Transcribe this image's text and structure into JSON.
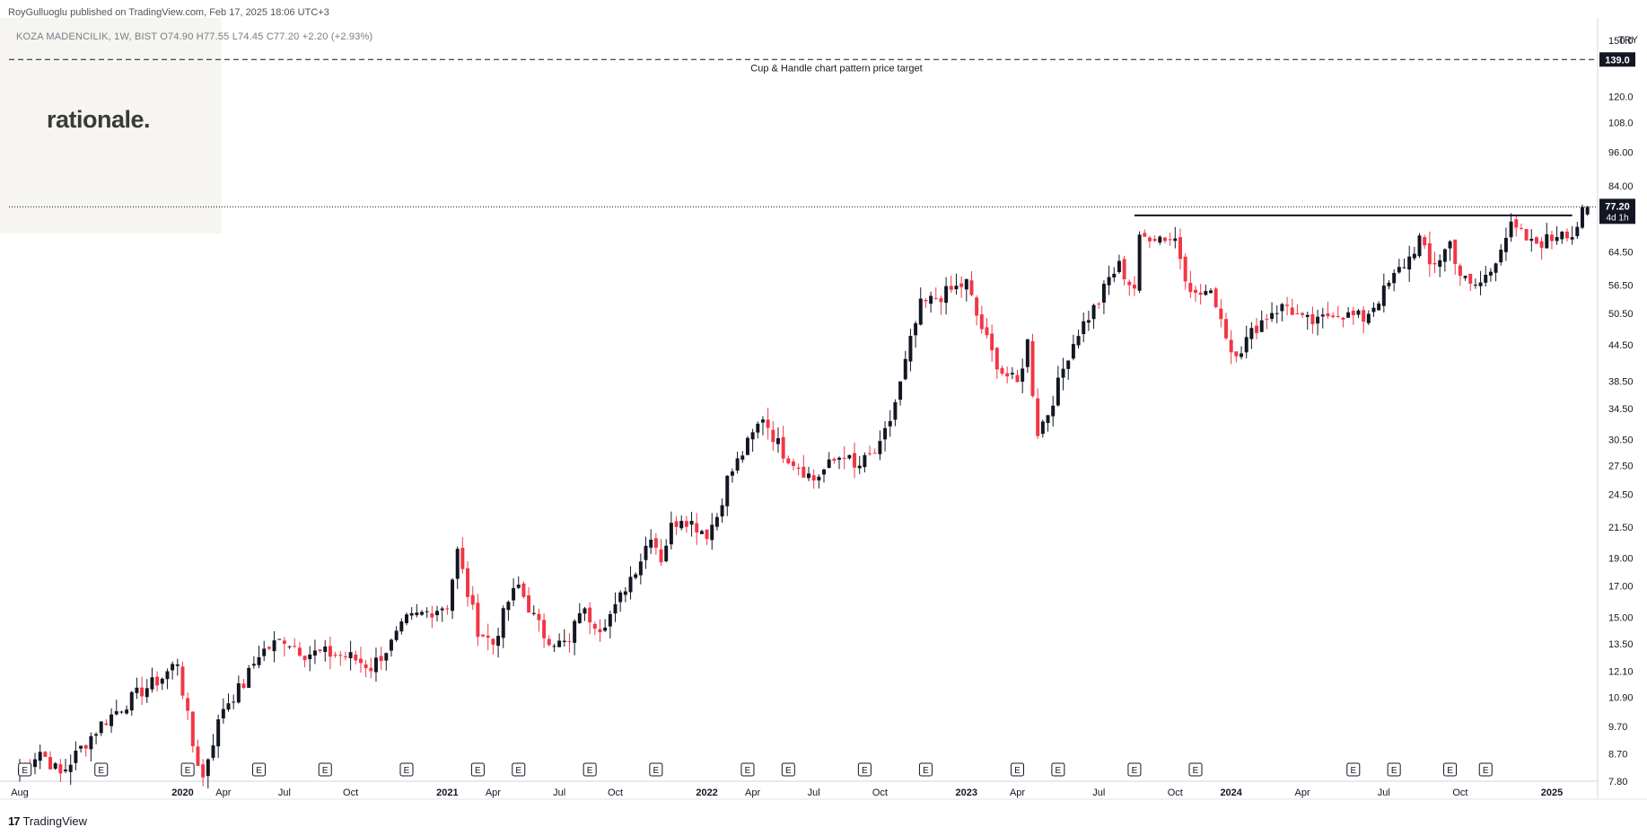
{
  "header": {
    "published": "RoyGulluoglu published on TradingView.com, Feb 17, 2025 18:06 UTC+3",
    "symbol_line": "KOZA MADENCILIK, 1W, BIST  O74.90  H77.55  L74.45  C77.20  +2.20 (+2.93%)"
  },
  "branding": {
    "watermark": "rationale.",
    "footer": "TradingView",
    "footer_mark": "17"
  },
  "colors": {
    "up": "#131722",
    "down": "#f23645",
    "grid": "#f0f3fa",
    "axis_text": "#131722"
  },
  "chart_data": {
    "type": "candlestick",
    "symbol": "KOZA MADENCILIK",
    "interval": "1W",
    "exchange": "BIST",
    "currency": "TRY",
    "ohlc_last": {
      "open": 74.9,
      "high": 77.55,
      "low": 74.45,
      "close": 77.2,
      "change": "+2.20",
      "change_pct": "+2.93%"
    },
    "y_scale": "log",
    "ylim": [
      7.8,
      150
    ],
    "y_ticks": [
      "150.0",
      "139.0",
      "120.0",
      "108.0",
      "96.00",
      "84.00",
      "77.20",
      "64.50",
      "56.50",
      "50.50",
      "44.50",
      "38.50",
      "34.50",
      "30.50",
      "27.50",
      "24.50",
      "21.50",
      "19.00",
      "17.00",
      "15.00",
      "13.50",
      "12.10",
      "10.90",
      "9.70",
      "8.70",
      "7.80"
    ],
    "x_ticks": [
      "Aug",
      "2020",
      "Apr",
      "Jul",
      "Oct",
      "2021",
      "Apr",
      "Jul",
      "Oct",
      "2022",
      "Apr",
      "Jul",
      "Oct",
      "2023",
      "Apr",
      "Jul",
      "Oct",
      "2024",
      "Apr",
      "Jul",
      "Oct",
      "2025"
    ],
    "x_ticks_bold": [
      "2020",
      "2021",
      "2022",
      "2023",
      "2024",
      "2025"
    ],
    "anchors": [
      [
        "Aug",
        0,
        8.2
      ],
      [
        "",
        4,
        8.8
      ],
      [
        "",
        8,
        8.0
      ],
      [
        "",
        12,
        8.9
      ],
      [
        "",
        16,
        9.8
      ],
      [
        "",
        20,
        10.5
      ],
      [
        "",
        24,
        11.2
      ],
      [
        "",
        28,
        11.8
      ],
      [
        "",
        31,
        12.6
      ],
      [
        "2020",
        32,
        11.2
      ],
      [
        "",
        34,
        9.0
      ],
      [
        "",
        36,
        7.9
      ],
      [
        "",
        37,
        8.6
      ],
      [
        "Apr",
        40,
        10.5
      ],
      [
        "",
        44,
        11.5
      ],
      [
        "",
        47,
        13.0
      ],
      [
        "Jul",
        52,
        13.8
      ],
      [
        "",
        56,
        13.0
      ],
      [
        "",
        60,
        13.0
      ],
      [
        "Oct",
        65,
        12.8
      ],
      [
        "",
        69,
        12.3
      ],
      [
        "",
        73,
        13.5
      ],
      [
        "",
        76,
        14.8
      ],
      [
        "",
        79,
        15.2
      ],
      [
        "2021",
        84,
        15.8
      ],
      [
        "",
        86,
        19.5
      ],
      [
        "",
        88,
        16.5
      ],
      [
        "",
        90,
        14.3
      ],
      [
        "Apr",
        93,
        13.5
      ],
      [
        "",
        96,
        16.0
      ],
      [
        "",
        98,
        17.0
      ],
      [
        "",
        101,
        15.0
      ],
      [
        "",
        103,
        14.0
      ],
      [
        "Jul",
        106,
        13.5
      ],
      [
        "",
        108,
        13.5
      ],
      [
        "",
        110,
        15.5
      ],
      [
        "",
        112,
        15.0
      ],
      [
        "",
        114,
        14.5
      ],
      [
        "Oct",
        117,
        15.5
      ],
      [
        "",
        119,
        17.0
      ],
      [
        "",
        122,
        19.0
      ],
      [
        "",
        124,
        21.0
      ],
      [
        "",
        126,
        19.0
      ],
      [
        "",
        128,
        21.5
      ],
      [
        "",
        130,
        22.5
      ],
      [
        "2022",
        135,
        21.0
      ],
      [
        "",
        137,
        22.5
      ],
      [
        "",
        139,
        26.0
      ],
      [
        "Apr",
        144,
        31.0
      ],
      [
        "",
        146,
        33.5
      ],
      [
        "",
        148,
        31.0
      ],
      [
        "",
        150,
        29.0
      ],
      [
        "Jul",
        156,
        26.0
      ],
      [
        "",
        159,
        27.5
      ],
      [
        "",
        162,
        29.0
      ],
      [
        "",
        164,
        27.0
      ],
      [
        "Oct",
        169,
        29.5
      ],
      [
        "",
        171,
        33.0
      ],
      [
        "",
        173,
        38.0
      ],
      [
        "",
        175,
        45.0
      ],
      [
        "",
        177,
        52.0
      ],
      [
        "2023",
        186,
        57.0
      ],
      [
        "",
        188,
        50.0
      ],
      [
        "",
        191,
        43.0
      ],
      [
        "",
        193,
        40.0
      ],
      [
        "Apr",
        196,
        38.0
      ],
      [
        "",
        198,
        45.0
      ],
      [
        "",
        199,
        37.0
      ],
      [
        "",
        200,
        31.5
      ],
      [
        "",
        202,
        34.0
      ],
      [
        "",
        204,
        38.0
      ],
      [
        "",
        206,
        43.0
      ],
      [
        "",
        208,
        47.0
      ],
      [
        "Jul",
        212,
        53.0
      ],
      [
        "",
        214,
        58.0
      ],
      [
        "",
        216,
        61.0
      ],
      [
        "",
        218,
        57.0
      ],
      [
        "",
        219,
        56.0
      ],
      [
        "",
        220,
        67.5
      ],
      [
        "",
        222,
        69.0
      ],
      [
        "Oct",
        227,
        68.0
      ],
      [
        "",
        229,
        59.0
      ],
      [
        "",
        231,
        54.0
      ],
      [
        "",
        233,
        55.0
      ],
      [
        "",
        235,
        53.0
      ],
      [
        "2024",
        238,
        43.5
      ],
      [
        "",
        240,
        44.0
      ],
      [
        "",
        243,
        48.0
      ],
      [
        "",
        246,
        51.0
      ],
      [
        "",
        249,
        52.0
      ],
      [
        "Apr",
        252,
        49.0
      ],
      [
        "",
        255,
        48.5
      ],
      [
        "",
        258,
        51.0
      ],
      [
        "",
        261,
        50.0
      ],
      [
        "",
        264,
        49.5
      ],
      [
        "Jul",
        268,
        55.0
      ],
      [
        "",
        271,
        60.0
      ],
      [
        "",
        273,
        63.0
      ],
      [
        "",
        275,
        68.0
      ],
      [
        "",
        277,
        61.0
      ],
      [
        "",
        279,
        63.0
      ],
      [
        "",
        281,
        67.0
      ],
      [
        "Oct",
        283,
        59.0
      ],
      [
        "",
        285,
        56.0
      ],
      [
        "",
        287,
        57.0
      ],
      [
        "",
        289,
        60.0
      ],
      [
        "",
        291,
        66.5
      ],
      [
        "",
        293,
        71.0
      ],
      [
        "",
        295,
        69.0
      ],
      [
        "",
        297,
        66.5
      ],
      [
        "2025",
        301,
        68.0
      ],
      [
        "",
        303,
        71.0
      ],
      [
        "",
        305,
        69.0
      ],
      [
        "",
        307,
        75.0
      ],
      [
        "",
        308,
        77.2
      ]
    ],
    "annotations": [
      {
        "type": "horizontal_dashed",
        "value": 139.0,
        "label": "Cup & Handle chart pattern price target",
        "price_label": "139.0"
      },
      {
        "type": "resistance_line",
        "value": 74.6
      },
      {
        "type": "last_price_dotted",
        "value": 77.2,
        "price_label": "77.20",
        "countdown": "4d 1h"
      }
    ],
    "earnings_marker": "E",
    "earnings_weeks": [
      1,
      16,
      33,
      47,
      60,
      76,
      90,
      98,
      112,
      125,
      143,
      151,
      166,
      178,
      196,
      204,
      219,
      231,
      262,
      270,
      281,
      288
    ]
  }
}
